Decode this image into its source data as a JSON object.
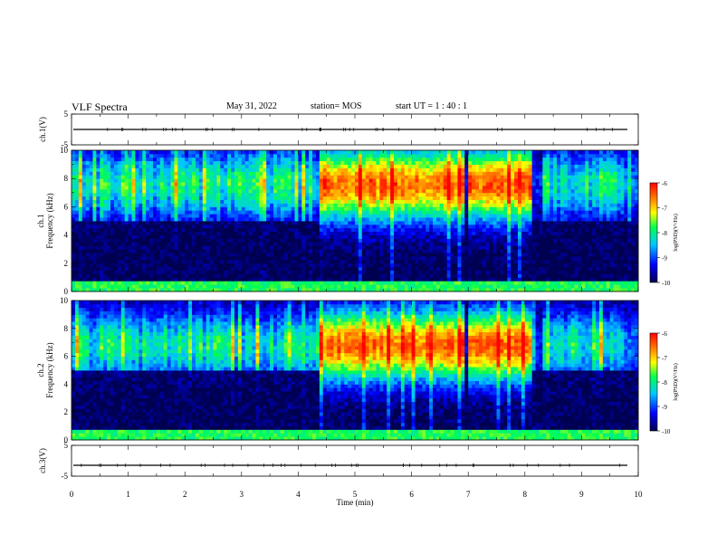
{
  "header": {
    "title": "VLF Spectra",
    "date": "May 31, 2022",
    "station": "station= MOS",
    "start": "start  UT =   1 : 40 : 1"
  },
  "chart_data": [
    {
      "type": "line",
      "panel": "ch1-voltage",
      "ylabel": "ch.1(V)",
      "ylim": [
        -5,
        5
      ],
      "yticks": [
        "5",
        "-5"
      ],
      "description_value": 0
    },
    {
      "type": "heatmap",
      "panel": "ch1-spectrogram",
      "ylabel_channel": "ch.1",
      "ylabel": "Frequency (kHz)",
      "ylim": [
        0,
        10
      ],
      "yticks": [
        "10",
        "8",
        "6",
        "4",
        "2",
        "0"
      ],
      "colorbar": {
        "label": "log(PSD)(V²/Hz)",
        "range": [
          -10,
          -6
        ],
        "ticks": [
          "-6",
          "-7",
          "-8",
          "-9",
          "-10"
        ]
      }
    },
    {
      "type": "heatmap",
      "panel": "ch2-spectrogram",
      "ylabel_channel": "ch.2",
      "ylabel": "Frequency (kHz)",
      "ylim": [
        0,
        10
      ],
      "yticks": [
        "10",
        "8",
        "6",
        "4",
        "2",
        "0"
      ],
      "colorbar": {
        "label": "log(PSD)(V²/Hz)",
        "range": [
          -10,
          -6
        ],
        "ticks": [
          "-6",
          "-7",
          "-8",
          "-9",
          "-10"
        ]
      }
    },
    {
      "type": "line",
      "panel": "ch3-voltage",
      "ylabel": "ch.3(V)",
      "ylim": [
        -5,
        5
      ],
      "yticks": [
        "5",
        "-5"
      ]
    }
  ],
  "xaxis": {
    "label": "Time (min)",
    "range": [
      0,
      10
    ],
    "ticks": [
      "0",
      "1",
      "2",
      "3",
      "4",
      "5",
      "6",
      "7",
      "8",
      "9",
      "10"
    ]
  }
}
